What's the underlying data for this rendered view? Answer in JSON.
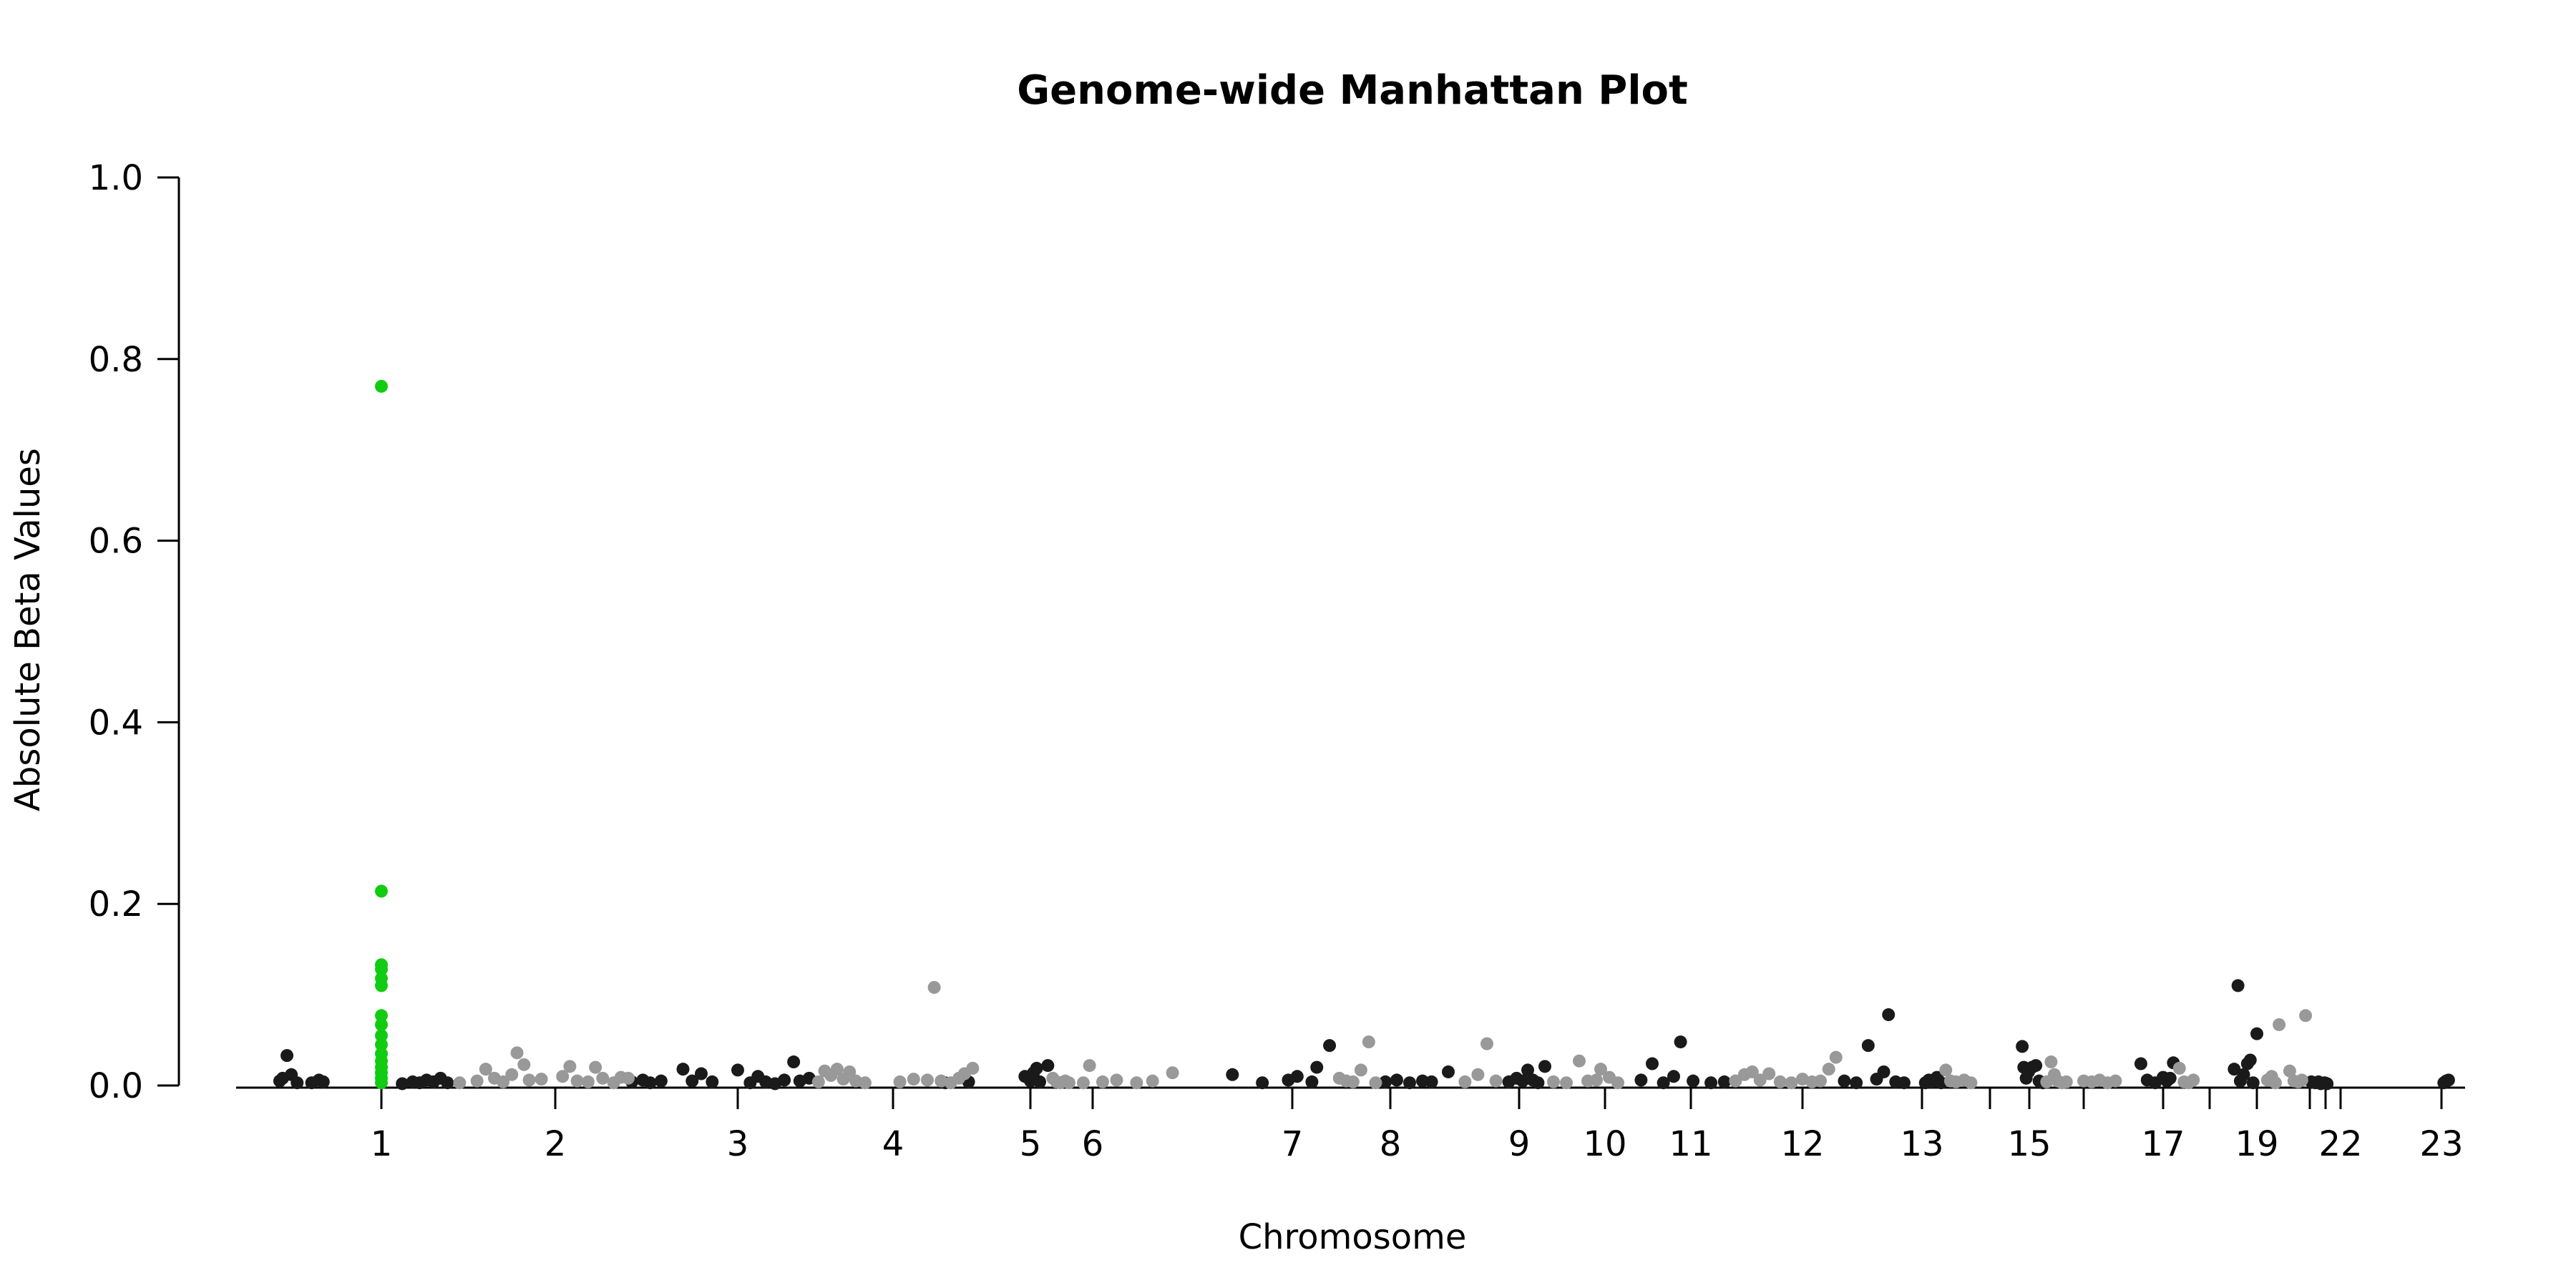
{
  "chart_data": {
    "type": "scatter",
    "title": "Genome-wide Manhattan Plot",
    "xlabel": "Chromosome",
    "ylabel": "Absolute Beta Values",
    "ylim": [
      0,
      1.0
    ],
    "yticks": [
      "0.0",
      "0.2",
      "0.4",
      "0.6",
      "0.8",
      "1.0"
    ],
    "grid": false,
    "colors": {
      "dark": "#1a1a1a",
      "light": "#999999",
      "highlight": "#11cc11"
    },
    "chromosome_ticks": [
      {
        "label": "1",
        "pos": 1.0
      },
      {
        "label": "2",
        "pos": 2.0
      },
      {
        "label": "3",
        "pos": 3.0
      },
      {
        "label": "4",
        "pos": 4.0
      },
      {
        "label": "5",
        "pos": 5.0
      },
      {
        "label": "6",
        "pos": 6.0
      },
      {
        "label": "7",
        "pos": 7.0
      },
      {
        "label": "8",
        "pos": 8.0
      },
      {
        "label": "9",
        "pos": 9.0
      },
      {
        "label": "10",
        "pos": 10.0
      },
      {
        "label": "11",
        "pos": 11.0
      },
      {
        "label": "12",
        "pos": 12.0
      },
      {
        "label": "13",
        "pos": 13.0
      },
      {
        "label": "",
        "pos": 14.0
      },
      {
        "label": "15",
        "pos": 15.0
      },
      {
        "label": "",
        "pos": 16.0
      },
      {
        "label": "17",
        "pos": 17.0
      },
      {
        "label": "",
        "pos": 18.0
      },
      {
        "label": "19",
        "pos": 19.0
      },
      {
        "label": "",
        "pos": 20.0
      },
      {
        "label": "",
        "pos": 21.0
      },
      {
        "label": "22",
        "pos": 22.0
      },
      {
        "label": "23",
        "pos": 23.0
      }
    ],
    "series": [
      {
        "color_key": "dark",
        "points": [
          [
            0.3,
            0.005
          ],
          [
            0.32,
            0.008
          ],
          [
            0.35,
            0.033
          ],
          [
            0.38,
            0.012
          ],
          [
            0.42,
            0.003
          ],
          [
            0.52,
            0.003
          ],
          [
            0.57,
            0.006
          ],
          [
            0.6,
            0.004
          ],
          [
            1.12,
            0.002
          ],
          [
            1.18,
            0.004
          ],
          [
            1.22,
            0.003
          ],
          [
            1.26,
            0.006
          ],
          [
            1.3,
            0.004
          ],
          [
            1.34,
            0.008
          ],
          [
            1.38,
            0.003
          ],
          [
            2.42,
            0.004
          ],
          [
            2.48,
            0.006
          ],
          [
            2.52,
            0.003
          ],
          [
            2.58,
            0.005
          ],
          [
            2.7,
            0.018
          ],
          [
            2.75,
            0.005
          ],
          [
            2.8,
            0.013
          ],
          [
            2.86,
            0.004
          ],
          [
            3.0,
            0.017
          ],
          [
            3.08,
            0.003
          ],
          [
            3.13,
            0.01
          ],
          [
            3.18,
            0.004
          ],
          [
            3.24,
            0.002
          ],
          [
            3.3,
            0.006
          ],
          [
            3.36,
            0.026
          ],
          [
            3.4,
            0.005
          ],
          [
            3.46,
            0.008
          ],
          [
            4.38,
            0.003
          ],
          [
            4.55,
            0.004
          ],
          [
            4.96,
            0.01
          ],
          [
            5.0,
            0.005
          ],
          [
            5.05,
            0.014
          ],
          [
            5.1,
            0.019
          ],
          [
            5.15,
            0.004
          ],
          [
            5.28,
            0.022
          ],
          [
            6.7,
            0.012
          ],
          [
            6.85,
            0.003
          ],
          [
            6.98,
            0.006
          ],
          [
            7.05,
            0.01
          ],
          [
            7.2,
            0.004
          ],
          [
            7.25,
            0.02
          ],
          [
            7.38,
            0.044
          ],
          [
            7.95,
            0.004
          ],
          [
            8.05,
            0.006
          ],
          [
            8.15,
            0.003
          ],
          [
            8.25,
            0.005
          ],
          [
            8.32,
            0.004
          ],
          [
            8.45,
            0.015
          ],
          [
            8.92,
            0.004
          ],
          [
            8.98,
            0.008
          ],
          [
            9.04,
            0.005
          ],
          [
            9.1,
            0.017
          ],
          [
            9.16,
            0.006
          ],
          [
            9.22,
            0.003
          ],
          [
            9.3,
            0.021
          ],
          [
            10.42,
            0.006
          ],
          [
            10.55,
            0.024
          ],
          [
            10.68,
            0.003
          ],
          [
            10.8,
            0.01
          ],
          [
            10.88,
            0.048
          ],
          [
            11.02,
            0.005
          ],
          [
            11.18,
            0.003
          ],
          [
            11.3,
            0.004
          ],
          [
            12.35,
            0.005
          ],
          [
            12.45,
            0.003
          ],
          [
            12.55,
            0.044
          ],
          [
            12.62,
            0.007
          ],
          [
            12.68,
            0.015
          ],
          [
            12.72,
            0.078
          ],
          [
            12.78,
            0.004
          ],
          [
            12.85,
            0.003
          ],
          [
            13.05,
            0.003
          ],
          [
            13.1,
            0.006
          ],
          [
            13.15,
            0.004
          ],
          [
            13.22,
            0.009
          ],
          [
            13.28,
            0.003
          ],
          [
            14.82,
            0.043
          ],
          [
            14.86,
            0.02
          ],
          [
            14.92,
            0.008
          ],
          [
            14.98,
            0.015
          ],
          [
            15.05,
            0.02
          ],
          [
            15.12,
            0.022
          ],
          [
            15.18,
            0.005
          ],
          [
            15.25,
            0.003
          ],
          [
            16.72,
            0.024
          ],
          [
            16.8,
            0.006
          ],
          [
            16.9,
            0.003
          ],
          [
            17.0,
            0.009
          ],
          [
            17.08,
            0.005
          ],
          [
            17.15,
            0.008
          ],
          [
            17.22,
            0.025
          ],
          [
            18.52,
            0.018
          ],
          [
            18.6,
            0.11
          ],
          [
            18.65,
            0.005
          ],
          [
            18.72,
            0.012
          ],
          [
            18.8,
            0.024
          ],
          [
            18.86,
            0.028
          ],
          [
            18.92,
            0.003
          ],
          [
            19.0,
            0.057
          ],
          [
            20.1,
            0.004
          ],
          [
            20.35,
            0.003
          ],
          [
            20.55,
            0.004
          ],
          [
            20.7,
            0.002
          ],
          [
            20.95,
            0.003
          ],
          [
            21.1,
            0.002
          ],
          [
            23.1,
            0.003
          ],
          [
            23.2,
            0.005
          ],
          [
            23.3,
            0.006
          ]
        ]
      },
      {
        "color_key": "light",
        "points": [
          [
            1.45,
            0.003
          ],
          [
            1.55,
            0.005
          ],
          [
            1.6,
            0.018
          ],
          [
            1.65,
            0.008
          ],
          [
            1.7,
            0.004
          ],
          [
            1.75,
            0.012
          ],
          [
            1.78,
            0.036
          ],
          [
            1.82,
            0.023
          ],
          [
            1.85,
            0.006
          ],
          [
            1.92,
            0.007
          ],
          [
            2.04,
            0.01
          ],
          [
            2.08,
            0.021
          ],
          [
            2.12,
            0.005
          ],
          [
            2.18,
            0.004
          ],
          [
            2.22,
            0.02
          ],
          [
            2.26,
            0.008
          ],
          [
            2.32,
            0.003
          ],
          [
            2.36,
            0.009
          ],
          [
            2.4,
            0.008
          ],
          [
            3.52,
            0.004
          ],
          [
            3.56,
            0.016
          ],
          [
            3.6,
            0.011
          ],
          [
            3.64,
            0.018
          ],
          [
            3.68,
            0.007
          ],
          [
            3.72,
            0.015
          ],
          [
            3.76,
            0.005
          ],
          [
            3.82,
            0.003
          ],
          [
            4.05,
            0.004
          ],
          [
            4.15,
            0.007
          ],
          [
            4.25,
            0.006
          ],
          [
            4.3,
            0.108
          ],
          [
            4.35,
            0.005
          ],
          [
            4.42,
            0.003
          ],
          [
            4.48,
            0.008
          ],
          [
            4.52,
            0.013
          ],
          [
            4.58,
            0.019
          ],
          [
            5.36,
            0.008
          ],
          [
            5.42,
            0.004
          ],
          [
            5.48,
            0.003
          ],
          [
            5.56,
            0.005
          ],
          [
            5.62,
            0.003
          ],
          [
            5.85,
            0.003
          ],
          [
            5.95,
            0.022
          ],
          [
            6.05,
            0.004
          ],
          [
            6.12,
            0.006
          ],
          [
            6.22,
            0.003
          ],
          [
            6.3,
            0.005
          ],
          [
            6.4,
            0.014
          ],
          [
            7.48,
            0.008
          ],
          [
            7.55,
            0.005
          ],
          [
            7.62,
            0.004
          ],
          [
            7.7,
            0.017
          ],
          [
            7.78,
            0.048
          ],
          [
            7.85,
            0.003
          ],
          [
            8.58,
            0.004
          ],
          [
            8.68,
            0.012
          ],
          [
            8.75,
            0.046
          ],
          [
            8.82,
            0.005
          ],
          [
            9.4,
            0.004
          ],
          [
            9.55,
            0.003
          ],
          [
            9.7,
            0.027
          ],
          [
            9.8,
            0.005
          ],
          [
            9.9,
            0.006
          ],
          [
            9.95,
            0.018
          ],
          [
            10.05,
            0.009
          ],
          [
            10.15,
            0.003
          ],
          [
            11.4,
            0.005
          ],
          [
            11.48,
            0.012
          ],
          [
            11.55,
            0.015
          ],
          [
            11.62,
            0.006
          ],
          [
            11.7,
            0.013
          ],
          [
            11.8,
            0.004
          ],
          [
            11.9,
            0.003
          ],
          [
            12.0,
            0.007
          ],
          [
            12.08,
            0.004
          ],
          [
            12.15,
            0.005
          ],
          [
            12.22,
            0.018
          ],
          [
            12.28,
            0.031
          ],
          [
            13.35,
            0.017
          ],
          [
            13.42,
            0.005
          ],
          [
            13.5,
            0.004
          ],
          [
            13.62,
            0.006
          ],
          [
            13.72,
            0.003
          ],
          [
            15.32,
            0.004
          ],
          [
            15.4,
            0.026
          ],
          [
            15.46,
            0.012
          ],
          [
            15.52,
            0.005
          ],
          [
            15.6,
            0.003
          ],
          [
            15.68,
            0.004
          ],
          [
            16.0,
            0.005
          ],
          [
            16.1,
            0.004
          ],
          [
            16.2,
            0.006
          ],
          [
            16.3,
            0.003
          ],
          [
            16.4,
            0.005
          ],
          [
            17.35,
            0.019
          ],
          [
            17.45,
            0.004
          ],
          [
            17.55,
            0.003
          ],
          [
            17.65,
            0.006
          ],
          [
            19.2,
            0.006
          ],
          [
            19.28,
            0.01
          ],
          [
            19.35,
            0.003
          ],
          [
            19.42,
            0.067
          ],
          [
            19.62,
            0.016
          ],
          [
            19.7,
            0.005
          ],
          [
            19.78,
            0.004
          ],
          [
            19.85,
            0.006
          ],
          [
            19.92,
            0.077
          ]
        ]
      },
      {
        "color_key": "highlight",
        "points": [
          [
            1.0,
            0.77
          ],
          [
            1.0,
            0.214
          ],
          [
            1.0,
            0.133
          ],
          [
            1.0,
            0.128
          ],
          [
            1.0,
            0.118
          ],
          [
            1.0,
            0.11
          ],
          [
            1.0,
            0.077
          ],
          [
            1.0,
            0.067
          ],
          [
            1.0,
            0.055
          ],
          [
            1.0,
            0.045
          ],
          [
            1.0,
            0.035
          ],
          [
            1.0,
            0.027
          ],
          [
            1.0,
            0.02
          ],
          [
            1.0,
            0.014
          ],
          [
            1.0,
            0.008
          ],
          [
            1.0,
            0.003
          ]
        ]
      }
    ]
  }
}
